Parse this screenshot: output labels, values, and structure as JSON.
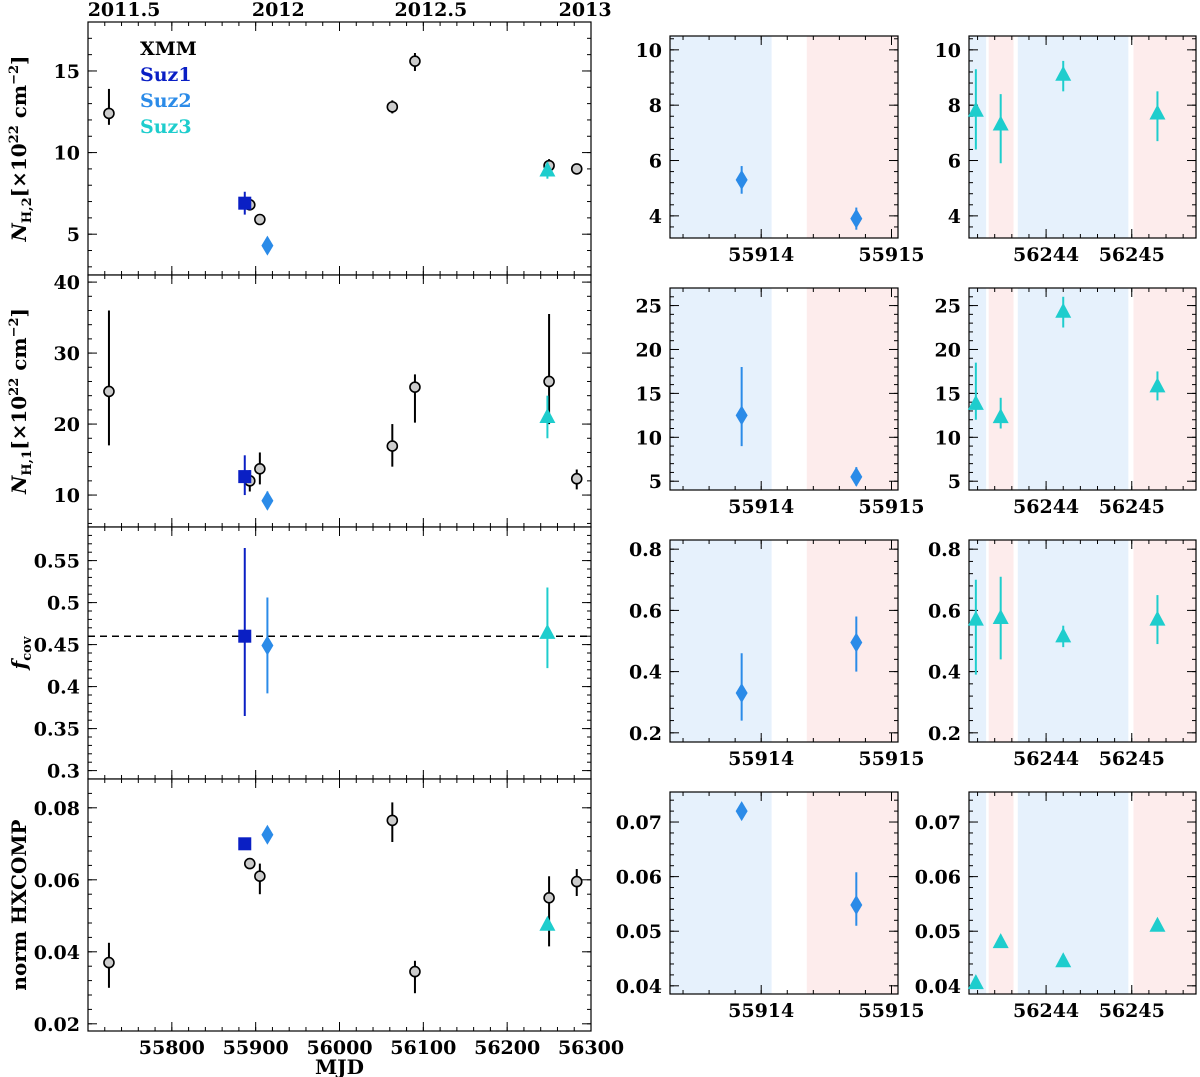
{
  "colors": {
    "xmm_fill": "#cccccc",
    "xmm_edge": "#000000",
    "suz1": "#0a1fc4",
    "suz2": "#2b8be8",
    "suz3": "#1ecdcd",
    "shade_blue": "#e6f1fc",
    "shade_red": "#fdecec"
  },
  "chart_data": {
    "type": "scatter",
    "title": "",
    "main_xlabel": "MJD",
    "main_xlim": [
      55700,
      56300
    ],
    "main_xticks": [
      55800,
      55900,
      56000,
      56100,
      56200,
      56300
    ],
    "top_axis": {
      "labels": [
        "2011.5",
        "2012",
        "2012.5",
        "2013"
      ],
      "mjd": [
        55743,
        55927,
        56109,
        56293
      ]
    },
    "legend": [
      {
        "label": "XMM",
        "series": "xmm"
      },
      {
        "label": "Suz1",
        "series": "suz1"
      },
      {
        "label": "Suz2",
        "series": "suz2"
      },
      {
        "label": "Suz3",
        "series": "suz3"
      }
    ],
    "zoom1": {
      "xlim": [
        55913.3,
        55915.05
      ],
      "xticks": [
        55914,
        55915
      ],
      "shades": [
        {
          "from": 55913.3,
          "to": 55914.08,
          "color": "blue"
        },
        {
          "from": 55914.35,
          "to": 55915.05,
          "color": "red"
        }
      ]
    },
    "zoom2": {
      "xlim": [
        56243.1,
        56245.75
      ],
      "xticks": [
        56244,
        56245
      ],
      "shades": [
        {
          "from": 56243.1,
          "to": 56243.3,
          "color": "blue"
        },
        {
          "from": 56243.33,
          "to": 56243.62,
          "color": "red"
        },
        {
          "from": 56243.67,
          "to": 56244.96,
          "color": "blue"
        },
        {
          "from": 56245.02,
          "to": 56245.75,
          "color": "red"
        }
      ]
    },
    "panels": [
      {
        "id": "nh2",
        "ylabel": "N_H,2 [×10^22 cm^-2]",
        "ylim": [
          2.5,
          18
        ],
        "yticks": [
          5,
          10,
          15
        ],
        "points": [
          {
            "series": "xmm",
            "x": 55725,
            "y": 12.4,
            "lo": 11.7,
            "hi": 13.9
          },
          {
            "series": "xmm",
            "x": 55893,
            "y": 6.8,
            "lo": 6.5,
            "hi": 7.1
          },
          {
            "series": "xmm",
            "x": 55905,
            "y": 5.9,
            "lo": 5.6,
            "hi": 6.2
          },
          {
            "series": "xmm",
            "x": 56063,
            "y": 12.8,
            "lo": 12.4,
            "hi": 13.2
          },
          {
            "series": "xmm",
            "x": 56090,
            "y": 15.6,
            "lo": 15.0,
            "hi": 16.1
          },
          {
            "series": "xmm",
            "x": 56250,
            "y": 9.2,
            "lo": 8.8,
            "hi": 9.6
          },
          {
            "series": "xmm",
            "x": 56283,
            "y": 9.0,
            "lo": 8.8,
            "hi": 9.3
          },
          {
            "series": "suz1",
            "x": 55887,
            "y": 6.9,
            "lo": 6.2,
            "hi": 7.6
          },
          {
            "series": "suz2",
            "x": 55914,
            "y": 4.3,
            "lo": 3.8,
            "hi": 4.8
          },
          {
            "series": "suz3",
            "x": 56248,
            "y": 8.9,
            "lo": 8.4,
            "hi": 9.4
          }
        ],
        "zoom1": {
          "ylim": [
            3.2,
            10.5
          ],
          "yticks": [
            4,
            6,
            8,
            10
          ],
          "points": [
            {
              "x": 55913.85,
              "y": 5.3,
              "lo": 4.8,
              "hi": 5.8
            },
            {
              "x": 55914.73,
              "y": 3.9,
              "lo": 3.5,
              "hi": 4.3
            }
          ]
        },
        "zoom2": {
          "ylim": [
            3.2,
            10.5
          ],
          "yticks": [
            4,
            6,
            8,
            10
          ],
          "points": [
            {
              "x": 56243.18,
              "y": 7.8,
              "lo": 6.4,
              "hi": 9.3
            },
            {
              "x": 56243.47,
              "y": 7.3,
              "lo": 5.9,
              "hi": 8.4
            },
            {
              "x": 56244.2,
              "y": 9.1,
              "lo": 8.5,
              "hi": 9.6
            },
            {
              "x": 56245.3,
              "y": 7.7,
              "lo": 6.7,
              "hi": 8.5
            }
          ]
        }
      },
      {
        "id": "nh1",
        "ylabel": "N_H,1 [×10^22 cm^-2]",
        "ylim": [
          5.5,
          41
        ],
        "yticks": [
          10,
          20,
          30,
          40
        ],
        "points": [
          {
            "series": "xmm",
            "x": 55725,
            "y": 24.6,
            "lo": 17.0,
            "hi": 36.0
          },
          {
            "series": "xmm",
            "x": 55893,
            "y": 12.0,
            "lo": 10.5,
            "hi": 13.5
          },
          {
            "series": "xmm",
            "x": 55905,
            "y": 13.7,
            "lo": 11.5,
            "hi": 16.0
          },
          {
            "series": "xmm",
            "x": 56063,
            "y": 16.9,
            "lo": 14.0,
            "hi": 20.0
          },
          {
            "series": "xmm",
            "x": 56090,
            "y": 25.2,
            "lo": 20.2,
            "hi": 27.0
          },
          {
            "series": "xmm",
            "x": 56250,
            "y": 26.0,
            "lo": 20.0,
            "hi": 35.5
          },
          {
            "series": "xmm",
            "x": 56283,
            "y": 12.3,
            "lo": 10.8,
            "hi": 13.6
          },
          {
            "series": "suz1",
            "x": 55887,
            "y": 12.6,
            "lo": 10.0,
            "hi": 15.6
          },
          {
            "series": "suz2",
            "x": 55914,
            "y": 9.2,
            "lo": 8.0,
            "hi": 10.5
          },
          {
            "series": "suz3",
            "x": 56248,
            "y": 21.0,
            "lo": 18.0,
            "hi": 24.0
          }
        ],
        "zoom1": {
          "ylim": [
            4,
            27
          ],
          "yticks": [
            5,
            10,
            15,
            20,
            25
          ],
          "points": [
            {
              "x": 55913.85,
              "y": 12.5,
              "lo": 9.0,
              "hi": 18.0
            },
            {
              "x": 55914.73,
              "y": 5.5,
              "lo": 4.5,
              "hi": 6.6
            }
          ]
        },
        "zoom2": {
          "ylim": [
            4,
            27
          ],
          "yticks": [
            5,
            10,
            15,
            20,
            25
          ],
          "points": [
            {
              "x": 56243.18,
              "y": 13.8,
              "lo": 12.0,
              "hi": 18.5
            },
            {
              "x": 56243.47,
              "y": 12.3,
              "lo": 11.0,
              "hi": 14.5
            },
            {
              "x": 56244.2,
              "y": 24.3,
              "lo": 22.5,
              "hi": 26.0
            },
            {
              "x": 56245.3,
              "y": 15.8,
              "lo": 14.2,
              "hi": 17.5
            }
          ]
        }
      },
      {
        "id": "fcov",
        "ylabel": "f_cov",
        "ylim": [
          0.29,
          0.59
        ],
        "yticks": [
          0.3,
          0.35,
          0.4,
          0.45,
          0.5,
          0.55
        ],
        "hline": 0.46,
        "points": [
          {
            "series": "suz1",
            "x": 55887,
            "y": 0.46,
            "lo": 0.365,
            "hi": 0.565
          },
          {
            "series": "suz2",
            "x": 55914,
            "y": 0.449,
            "lo": 0.392,
            "hi": 0.506
          },
          {
            "series": "suz3",
            "x": 56248,
            "y": 0.464,
            "lo": 0.422,
            "hi": 0.518
          }
        ],
        "zoom1": {
          "ylim": [
            0.17,
            0.83
          ],
          "yticks": [
            0.2,
            0.4,
            0.6,
            0.8
          ],
          "points": [
            {
              "x": 55913.85,
              "y": 0.33,
              "lo": 0.24,
              "hi": 0.46
            },
            {
              "x": 55914.73,
              "y": 0.495,
              "lo": 0.4,
              "hi": 0.58
            }
          ]
        },
        "zoom2": {
          "ylim": [
            0.17,
            0.83
          ],
          "yticks": [
            0.2,
            0.4,
            0.6,
            0.8
          ],
          "points": [
            {
              "x": 56243.18,
              "y": 0.57,
              "lo": 0.39,
              "hi": 0.7
            },
            {
              "x": 56243.47,
              "y": 0.575,
              "lo": 0.44,
              "hi": 0.71
            },
            {
              "x": 56244.2,
              "y": 0.515,
              "lo": 0.48,
              "hi": 0.55
            },
            {
              "x": 56245.3,
              "y": 0.57,
              "lo": 0.49,
              "hi": 0.65
            }
          ]
        }
      },
      {
        "id": "norm",
        "ylabel": "norm HXCOMP",
        "ylim": [
          0.018,
          0.088
        ],
        "yticks": [
          0.02,
          0.04,
          0.06,
          0.08
        ],
        "points": [
          {
            "series": "xmm",
            "x": 55725,
            "y": 0.037,
            "lo": 0.03,
            "hi": 0.0425
          },
          {
            "series": "xmm",
            "x": 55893,
            "y": 0.0645,
            "lo": 0.0635,
            "hi": 0.0655
          },
          {
            "series": "xmm",
            "x": 55905,
            "y": 0.061,
            "lo": 0.056,
            "hi": 0.0645
          },
          {
            "series": "xmm",
            "x": 56063,
            "y": 0.0765,
            "lo": 0.0705,
            "hi": 0.0815
          },
          {
            "series": "xmm",
            "x": 56090,
            "y": 0.0345,
            "lo": 0.0285,
            "hi": 0.0375
          },
          {
            "series": "xmm",
            "x": 56250,
            "y": 0.055,
            "lo": 0.0415,
            "hi": 0.061
          },
          {
            "series": "xmm",
            "x": 56283,
            "y": 0.0595,
            "lo": 0.0555,
            "hi": 0.063
          },
          {
            "series": "suz1",
            "x": 55887,
            "y": 0.07,
            "lo": 0.0695,
            "hi": 0.0705
          },
          {
            "series": "suz2",
            "x": 55914,
            "y": 0.0725,
            "lo": 0.071,
            "hi": 0.0745
          },
          {
            "series": "suz3",
            "x": 56248,
            "y": 0.0475,
            "lo": 0.0465,
            "hi": 0.0485
          }
        ],
        "zoom1": {
          "ylim": [
            0.0385,
            0.0755
          ],
          "yticks": [
            0.04,
            0.05,
            0.06,
            0.07
          ],
          "points": [
            {
              "x": 55913.85,
              "y": 0.072,
              "lo": 0.0708,
              "hi": 0.0733
            },
            {
              "x": 55914.73,
              "y": 0.0548,
              "lo": 0.051,
              "hi": 0.0608
            }
          ]
        },
        "zoom2": {
          "ylim": [
            0.0385,
            0.0755
          ],
          "yticks": [
            0.04,
            0.05,
            0.06,
            0.07
          ],
          "points": [
            {
              "x": 56243.18,
              "y": 0.0405,
              "lo": 0.04,
              "hi": 0.041
            },
            {
              "x": 56243.47,
              "y": 0.048,
              "lo": 0.0475,
              "hi": 0.0485
            },
            {
              "x": 56244.2,
              "y": 0.0445,
              "lo": 0.044,
              "hi": 0.045
            },
            {
              "x": 56245.3,
              "y": 0.051,
              "lo": 0.0505,
              "hi": 0.0515
            }
          ]
        }
      }
    ]
  }
}
